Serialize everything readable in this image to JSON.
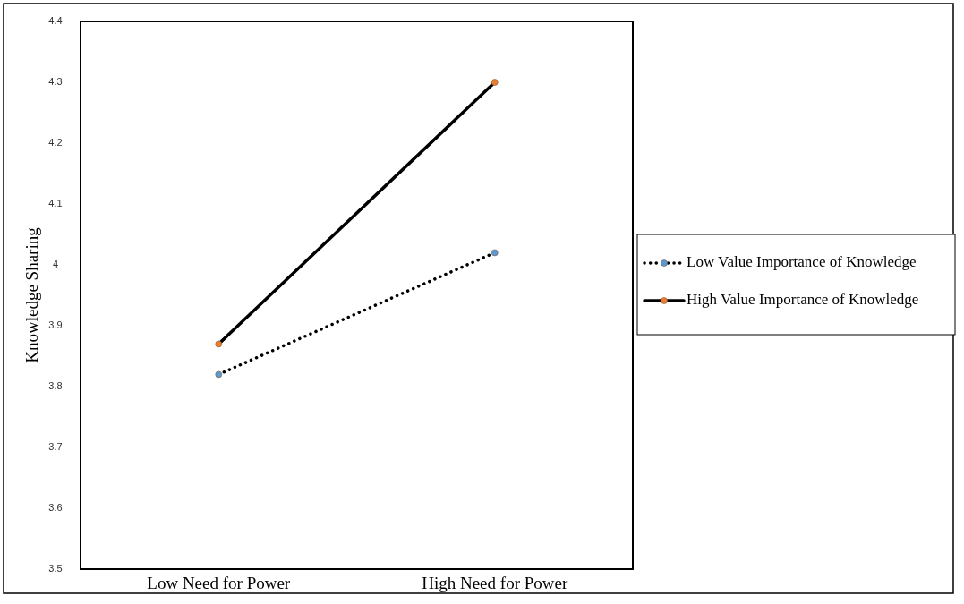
{
  "chart_data": {
    "type": "line",
    "ylabel": "Knowledge Sharing",
    "categories": [
      "Low Need for Power",
      "High Need for Power"
    ],
    "series": [
      {
        "name": "Low Value Importance of Knowledge",
        "color": "#000000",
        "colors": [
          "#5b9bd5",
          "#5b9bd5"
        ],
        "line_style": "dotted",
        "values": [
          3.82,
          4.02
        ]
      },
      {
        "name": "High Value Importance of Knowledge",
        "color": "#000000",
        "colors": [
          "#ed7d31",
          "#ed7d31"
        ],
        "line_style": "solid",
        "values": [
          3.87,
          4.3
        ]
      }
    ],
    "ylim": [
      3.5,
      4.4
    ],
    "yticks": [
      3.5,
      3.6,
      3.7,
      3.8,
      3.9,
      4,
      4.1,
      4.2,
      4.3,
      4.4
    ],
    "grid": false,
    "marker": "circle",
    "legend": "right"
  }
}
